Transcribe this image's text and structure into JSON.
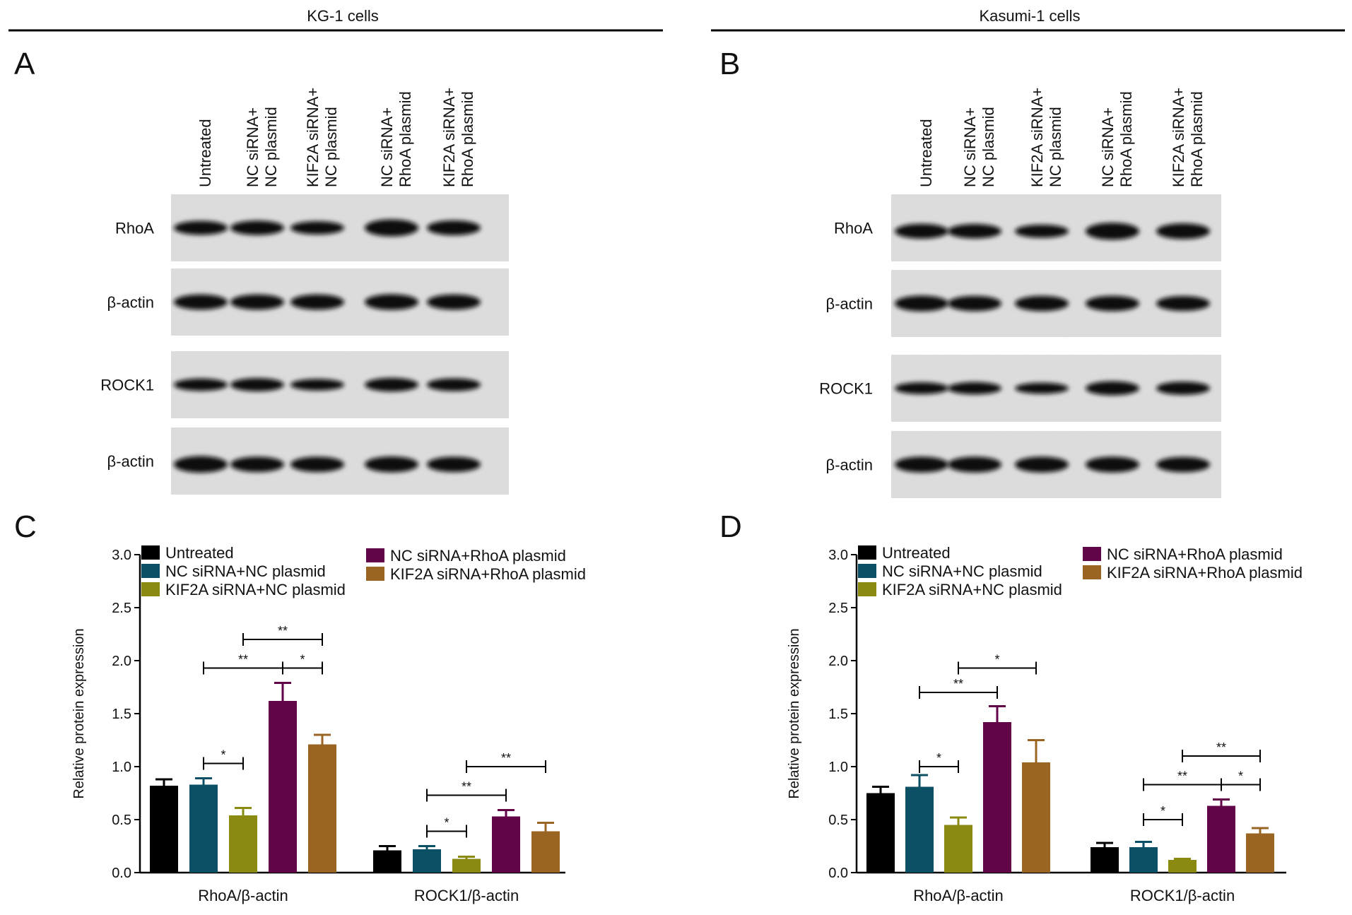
{
  "headers": {
    "left": "KG-1 cells",
    "right": "Kasumi-1 cells"
  },
  "panels": {
    "A": "A",
    "B": "B",
    "C": "C",
    "D": "D"
  },
  "lanes": [
    [
      "Untreated"
    ],
    [
      "NC siRNA+",
      "NC plasmid"
    ],
    [
      "KIF2A siRNA+",
      "NC plasmid"
    ],
    [
      "NC siRNA+",
      "RhoA plasmid"
    ],
    [
      "KIF2A siRNA+",
      "RhoA plasmid"
    ]
  ],
  "blot_rows": [
    "RhoA",
    "β-actin",
    "ROCK1",
    "β-actin"
  ],
  "colors": {
    "Untreated": "#000000",
    "NC siRNA+NC plasmid": "#0c5066",
    "KIF2A siRNA+NC plasmid": "#8a8a10",
    "NC siRNA+RhoA plasmid": "#620548",
    "KIF2A siRNA+RhoA plasmid": "#9a6522"
  },
  "chart_data": [
    {
      "panel": "C",
      "type": "bar",
      "ylabel": "Relative protein expression",
      "ylim": [
        0,
        3.0
      ],
      "yticks": [
        "0.0",
        "0.5",
        "1.0",
        "1.5",
        "2.0",
        "2.5",
        "3.0"
      ],
      "categories": [
        "RhoA/β-actin",
        "ROCK1/β-actin"
      ],
      "series": [
        {
          "name": "Untreated",
          "values": [
            0.82,
            0.21
          ],
          "errors": [
            0.06,
            0.04
          ]
        },
        {
          "name": "NC siRNA+NC plasmid",
          "values": [
            0.83,
            0.22
          ],
          "errors": [
            0.06,
            0.03
          ]
        },
        {
          "name": "KIF2A siRNA+NC plasmid",
          "values": [
            0.54,
            0.13
          ],
          "errors": [
            0.07,
            0.02
          ]
        },
        {
          "name": "NC siRNA+RhoA plasmid",
          "values": [
            1.62,
            0.53
          ],
          "errors": [
            0.17,
            0.06
          ]
        },
        {
          "name": "KIF2A siRNA+RhoA plasmid",
          "values": [
            1.21,
            0.39
          ],
          "errors": [
            0.09,
            0.08
          ]
        }
      ],
      "legend": "top",
      "significance": [
        {
          "cat": 0,
          "from": 1,
          "to": 2,
          "label": "*",
          "y": 1.03
        },
        {
          "cat": 0,
          "from": 1,
          "to": 3,
          "label": "**",
          "y": 1.93
        },
        {
          "cat": 0,
          "from": 3,
          "to": 4,
          "label": "*",
          "y": 1.93
        },
        {
          "cat": 0,
          "from": 2,
          "to": 4,
          "label": "**",
          "y": 2.2
        },
        {
          "cat": 1,
          "from": 1,
          "to": 2,
          "label": "*",
          "y": 0.39
        },
        {
          "cat": 1,
          "from": 1,
          "to": 3,
          "label": "**",
          "y": 0.73
        },
        {
          "cat": 1,
          "from": 2,
          "to": 4,
          "label": "**",
          "y": 1.0
        }
      ]
    },
    {
      "panel": "D",
      "type": "bar",
      "ylabel": "Relative protein expression",
      "ylim": [
        0,
        3.0
      ],
      "yticks": [
        "0.0",
        "0.5",
        "1.0",
        "1.5",
        "2.0",
        "2.5",
        "3.0"
      ],
      "categories": [
        "RhoA/β-actin",
        "ROCK1/β-actin"
      ],
      "series": [
        {
          "name": "Untreated",
          "values": [
            0.75,
            0.24
          ],
          "errors": [
            0.06,
            0.04
          ]
        },
        {
          "name": "NC siRNA+NC plasmid",
          "values": [
            0.81,
            0.24
          ],
          "errors": [
            0.11,
            0.05
          ]
        },
        {
          "name": "KIF2A siRNA+NC plasmid",
          "values": [
            0.45,
            0.12
          ],
          "errors": [
            0.07,
            0.01
          ]
        },
        {
          "name": "NC siRNA+RhoA plasmid",
          "values": [
            1.42,
            0.63
          ],
          "errors": [
            0.15,
            0.06
          ]
        },
        {
          "name": "KIF2A siRNA+RhoA plasmid",
          "values": [
            1.04,
            0.37
          ],
          "errors": [
            0.21,
            0.05
          ]
        }
      ],
      "legend": "top",
      "significance": [
        {
          "cat": 0,
          "from": 1,
          "to": 2,
          "label": "*",
          "y": 1.0
        },
        {
          "cat": 0,
          "from": 1,
          "to": 3,
          "label": "**",
          "y": 1.7
        },
        {
          "cat": 0,
          "from": 2,
          "to": 4,
          "label": "*",
          "y": 1.93
        },
        {
          "cat": 1,
          "from": 1,
          "to": 2,
          "label": "*",
          "y": 0.5
        },
        {
          "cat": 1,
          "from": 1,
          "to": 3,
          "label": "**",
          "y": 0.83
        },
        {
          "cat": 1,
          "from": 3,
          "to": 4,
          "label": "*",
          "y": 0.83
        },
        {
          "cat": 1,
          "from": 2,
          "to": 4,
          "label": "**",
          "y": 1.1
        }
      ]
    }
  ]
}
